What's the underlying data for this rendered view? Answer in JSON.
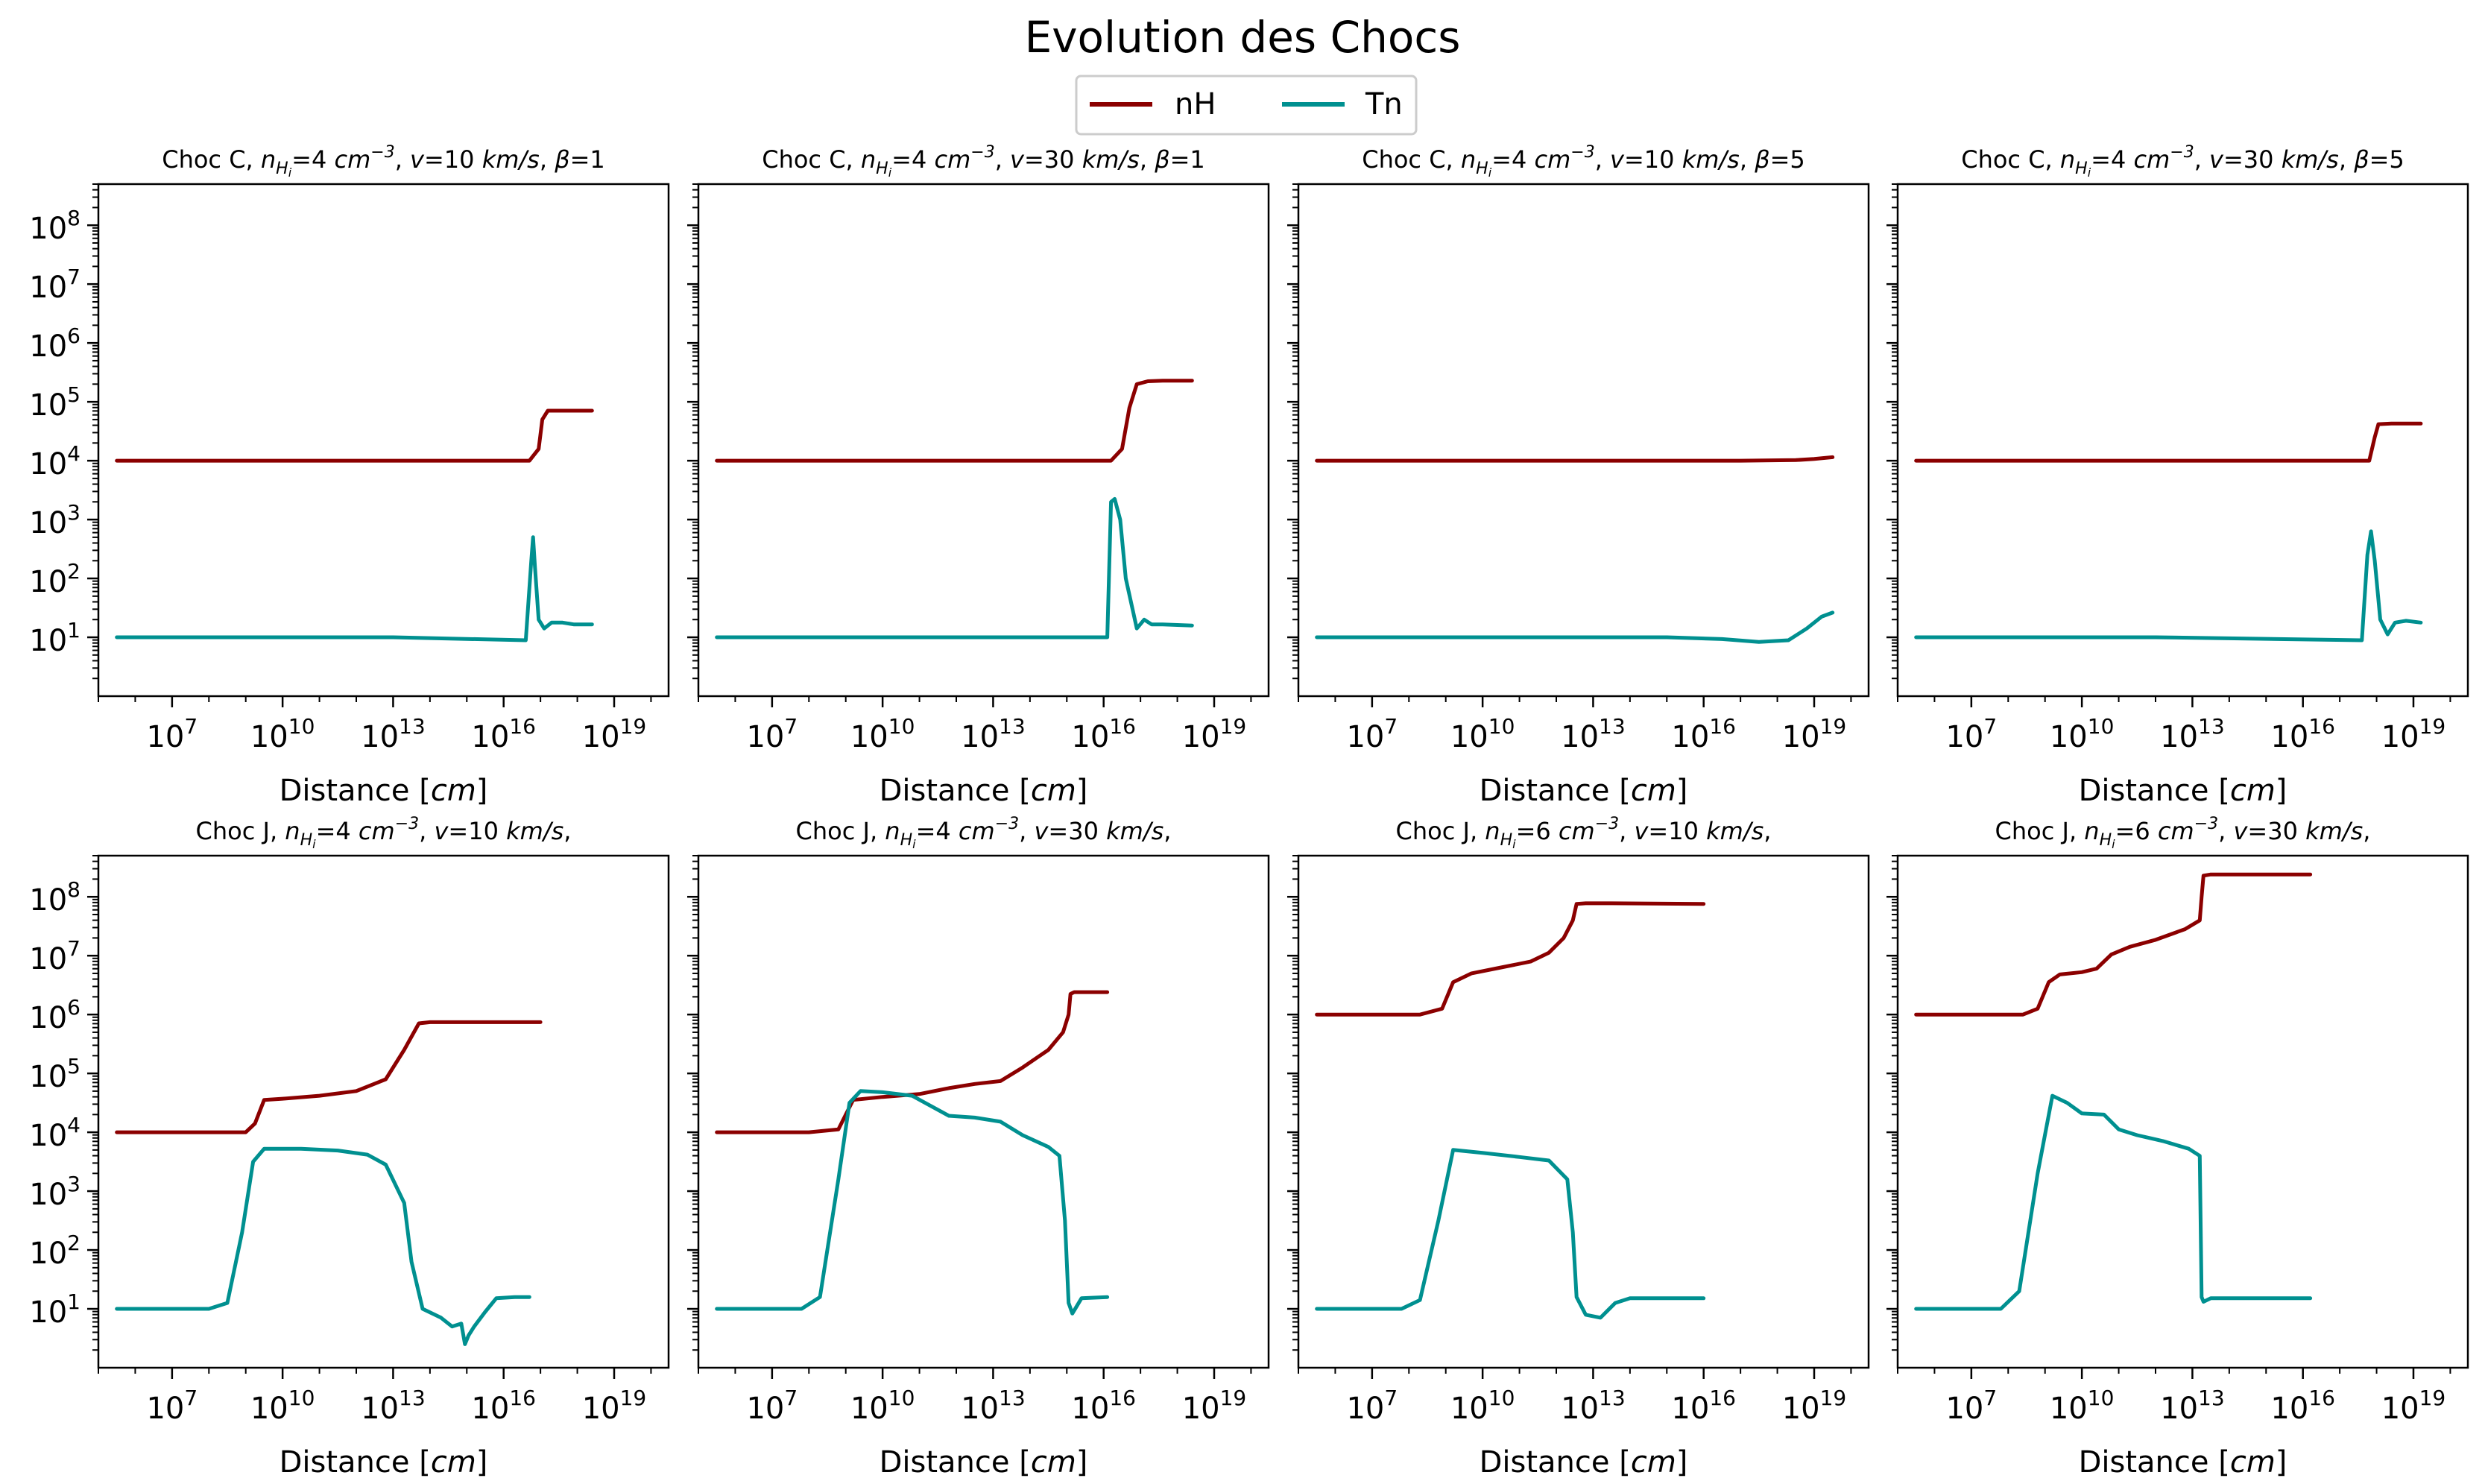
{
  "figure": {
    "title": "Evolution des Chocs",
    "legend": {
      "placement": "top-center",
      "entries": [
        {
          "name": "nH",
          "color": "#8b0000"
        },
        {
          "name": "Tn",
          "color": "#009090"
        }
      ]
    }
  },
  "chart_data": [
    {
      "type": "line",
      "title_parts": {
        "prefix": "Choc C, ",
        "n_value": "4",
        "v_value": "10",
        "beta_value": "1"
      },
      "xlabel": "Distance [cm]",
      "x_scale": "log",
      "y_scale": "log",
      "xlim": [
        100000,
        3e+20
      ],
      "ylim": [
        1,
        500000000
      ],
      "xticks": [
        "10^7",
        "10^10",
        "10^13",
        "10^16",
        "10^19"
      ],
      "yticks": [
        "10^1",
        "10^2",
        "10^3",
        "10^4",
        "10^5",
        "10^6",
        "10^7",
        "10^8"
      ],
      "series": [
        {
          "name": "nH",
          "log_x": [
            5.5,
            10,
            16.7,
            16.95,
            17.05,
            17.2,
            17.5,
            18.4
          ],
          "log_y": [
            4,
            4,
            4,
            4.2,
            4.7,
            4.85,
            4.85,
            4.85
          ]
        },
        {
          "name": "Tn",
          "log_x": [
            5.5,
            10,
            13,
            16.6,
            16.75,
            16.8,
            16.85,
            16.95,
            17.1,
            17.3,
            17.6,
            17.9,
            18.4
          ],
          "log_y": [
            1,
            1,
            1,
            0.95,
            2.3,
            2.7,
            2.2,
            1.3,
            1.15,
            1.25,
            1.25,
            1.22,
            1.22
          ]
        }
      ]
    },
    {
      "type": "line",
      "title_parts": {
        "prefix": "Choc C, ",
        "n_value": "4",
        "v_value": "30",
        "beta_value": "1"
      },
      "xlabel": "Distance [cm]",
      "x_scale": "log",
      "y_scale": "log",
      "xlim": [
        100000,
        3e+20
      ],
      "ylim": [
        1,
        500000000
      ],
      "xticks": [
        "10^7",
        "10^10",
        "10^13",
        "10^16",
        "10^19"
      ],
      "yticks": [
        "10^1",
        "10^2",
        "10^3",
        "10^4",
        "10^5",
        "10^6",
        "10^7",
        "10^8"
      ],
      "series": [
        {
          "name": "nH",
          "log_x": [
            5.5,
            10,
            16.2,
            16.5,
            16.7,
            16.9,
            17.2,
            17.6,
            18.4
          ],
          "log_y": [
            4,
            4,
            4,
            4.2,
            4.9,
            5.3,
            5.35,
            5.36,
            5.36
          ]
        },
        {
          "name": "Tn",
          "log_x": [
            5.5,
            10,
            16.1,
            16.2,
            16.3,
            16.45,
            16.6,
            16.9,
            17.1,
            17.3,
            17.6,
            18.4
          ],
          "log_y": [
            1,
            1,
            1,
            3.3,
            3.35,
            3,
            2,
            1.15,
            1.3,
            1.22,
            1.22,
            1.2
          ]
        }
      ]
    },
    {
      "type": "line",
      "title_parts": {
        "prefix": "Choc C, ",
        "n_value": "4",
        "v_value": "10",
        "beta_value": "5"
      },
      "xlabel": "Distance [cm]",
      "x_scale": "log",
      "y_scale": "log",
      "xlim": [
        100000,
        3e+20
      ],
      "ylim": [
        1,
        500000000
      ],
      "xticks": [
        "10^7",
        "10^10",
        "10^13",
        "10^16",
        "10^19"
      ],
      "yticks": [
        "10^1",
        "10^2",
        "10^3",
        "10^4",
        "10^5",
        "10^6",
        "10^7",
        "10^8"
      ],
      "series": [
        {
          "name": "nH",
          "log_x": [
            5.5,
            12,
            17,
            18.5,
            19,
            19.5
          ],
          "log_y": [
            4,
            4,
            4,
            4.01,
            4.03,
            4.06
          ]
        },
        {
          "name": "Tn",
          "log_x": [
            5.5,
            12,
            15,
            16.5,
            17.5,
            18.3,
            18.8,
            19.2,
            19.5
          ],
          "log_y": [
            1,
            1,
            1,
            0.97,
            0.92,
            0.95,
            1.15,
            1.35,
            1.42
          ]
        }
      ]
    },
    {
      "type": "line",
      "title_parts": {
        "prefix": "Choc C, ",
        "n_value": "4",
        "v_value": "30",
        "beta_value": "5"
      },
      "xlabel": "Distance [cm]",
      "x_scale": "log",
      "y_scale": "log",
      "xlim": [
        100000,
        3e+20
      ],
      "ylim": [
        1,
        500000000
      ],
      "xticks": [
        "10^7",
        "10^10",
        "10^13",
        "10^16",
        "10^19"
      ],
      "yticks": [
        "10^1",
        "10^2",
        "10^3",
        "10^4",
        "10^5",
        "10^6",
        "10^7",
        "10^8"
      ],
      "series": [
        {
          "name": "nH",
          "log_x": [
            5.5,
            12,
            17.8,
            17.95,
            18.05,
            18.4,
            18.8,
            19.2
          ],
          "log_y": [
            4,
            4,
            4,
            4.4,
            4.62,
            4.63,
            4.63,
            4.63
          ]
        },
        {
          "name": "Tn",
          "log_x": [
            5.5,
            12,
            17.6,
            17.75,
            17.85,
            17.95,
            18.1,
            18.3,
            18.5,
            18.8,
            19.2
          ],
          "log_y": [
            1,
            1,
            0.95,
            2.4,
            2.8,
            2.3,
            1.3,
            1.05,
            1.25,
            1.28,
            1.25
          ]
        }
      ]
    },
    {
      "type": "line",
      "title_parts": {
        "prefix": "Choc J, ",
        "n_value": "4",
        "v_value": "10"
      },
      "xlabel": "Distance [cm]",
      "x_scale": "log",
      "y_scale": "log",
      "xlim": [
        100000,
        3e+20
      ],
      "ylim": [
        1,
        500000000
      ],
      "xticks": [
        "10^7",
        "10^10",
        "10^13",
        "10^16",
        "10^19"
      ],
      "yticks": [
        "10^1",
        "10^2",
        "10^3",
        "10^4",
        "10^5",
        "10^6",
        "10^7",
        "10^8"
      ],
      "series": [
        {
          "name": "nH",
          "log_x": [
            5.5,
            8,
            9,
            9.25,
            9.5,
            10,
            11,
            12,
            12.8,
            13.3,
            13.7,
            14,
            15,
            17
          ],
          "log_y": [
            4,
            4,
            4,
            4.15,
            4.55,
            4.57,
            4.62,
            4.7,
            4.9,
            5.4,
            5.85,
            5.87,
            5.87,
            5.87
          ]
        },
        {
          "name": "Tn",
          "log_x": [
            5.5,
            8,
            8.5,
            8.9,
            9.2,
            9.5,
            10.5,
            11.5,
            12.3,
            12.8,
            13.3,
            13.5,
            13.8,
            14.3,
            14.6,
            14.85,
            14.95,
            15.05,
            15.2,
            15.5,
            15.8,
            16.3,
            16.7
          ],
          "log_y": [
            1,
            1,
            1.1,
            2.3,
            3.5,
            3.72,
            3.72,
            3.69,
            3.62,
            3.45,
            2.8,
            1.8,
            1,
            0.85,
            0.7,
            0.75,
            0.4,
            0.55,
            0.7,
            0.95,
            1.18,
            1.2,
            1.2
          ]
        }
      ]
    },
    {
      "type": "line",
      "title_parts": {
        "prefix": "Choc J, ",
        "n_value": "4",
        "v_value": "30"
      },
      "xlabel": "Distance [cm]",
      "x_scale": "log",
      "y_scale": "log",
      "xlim": [
        100000,
        3e+20
      ],
      "ylim": [
        1,
        500000000
      ],
      "xticks": [
        "10^7",
        "10^10",
        "10^13",
        "10^16",
        "10^19"
      ],
      "yticks": [
        "10^1",
        "10^2",
        "10^3",
        "10^4",
        "10^5",
        "10^6",
        "10^7",
        "10^8"
      ],
      "series": [
        {
          "name": "nH",
          "log_x": [
            5.5,
            8,
            8.8,
            9.2,
            10,
            11,
            11.8,
            12.5,
            13.2,
            13.8,
            14.5,
            14.9,
            15.05,
            15.1,
            15.2,
            16.1
          ],
          "log_y": [
            4,
            4,
            4.05,
            4.55,
            4.6,
            4.65,
            4.75,
            4.82,
            4.87,
            5.1,
            5.4,
            5.7,
            6,
            6.35,
            6.38,
            6.38
          ]
        },
        {
          "name": "Tn",
          "log_x": [
            5.5,
            7.8,
            8.3,
            8.8,
            9.1,
            9.4,
            10,
            10.8,
            11.3,
            11.8,
            12.5,
            13.2,
            13.8,
            14.5,
            14.8,
            14.95,
            15.05,
            15.15,
            15.4,
            16.1
          ],
          "log_y": [
            1,
            1,
            1.2,
            3.2,
            4.5,
            4.7,
            4.68,
            4.62,
            4.45,
            4.28,
            4.25,
            4.18,
            3.95,
            3.75,
            3.6,
            2.5,
            1.1,
            0.92,
            1.18,
            1.2
          ]
        }
      ]
    },
    {
      "type": "line",
      "title_parts": {
        "prefix": "Choc J, ",
        "n_value": "6",
        "v_value": "10"
      },
      "xlabel": "Distance [cm]",
      "x_scale": "log",
      "y_scale": "log",
      "xlim": [
        100000,
        3e+20
      ],
      "ylim": [
        1,
        500000000
      ],
      "xticks": [
        "10^7",
        "10^10",
        "10^13",
        "10^16",
        "10^19"
      ],
      "yticks": [
        "10^1",
        "10^2",
        "10^3",
        "10^4",
        "10^5",
        "10^6",
        "10^7",
        "10^8"
      ],
      "series": [
        {
          "name": "nH",
          "log_x": [
            5.5,
            8.3,
            8.9,
            9.2,
            9.7,
            10.5,
            11.3,
            11.8,
            12.2,
            12.45,
            12.55,
            12.8,
            13.5,
            16
          ],
          "log_y": [
            6,
            6,
            6.1,
            6.55,
            6.7,
            6.8,
            6.9,
            7.05,
            7.3,
            7.6,
            7.88,
            7.89,
            7.89,
            7.88
          ]
        },
        {
          "name": "Tn",
          "log_x": [
            5.5,
            7.8,
            8.3,
            8.8,
            9.2,
            10,
            11,
            11.8,
            12.3,
            12.45,
            12.55,
            12.8,
            13.2,
            13.6,
            14,
            16
          ],
          "log_y": [
            1,
            1,
            1.15,
            2.5,
            3.7,
            3.65,
            3.58,
            3.52,
            3.2,
            2.3,
            1.2,
            0.9,
            0.85,
            1.1,
            1.18,
            1.18
          ]
        }
      ]
    },
    {
      "type": "line",
      "title_parts": {
        "prefix": "Choc J, ",
        "n_value": "6",
        "v_value": "30"
      },
      "xlabel": "Distance [cm]",
      "x_scale": "log",
      "y_scale": "log",
      "xlim": [
        100000,
        3e+20
      ],
      "ylim": [
        1,
        500000000
      ],
      "xticks": [
        "10^7",
        "10^10",
        "10^13",
        "10^16",
        "10^19"
      ],
      "yticks": [
        "10^1",
        "10^2",
        "10^3",
        "10^4",
        "10^5",
        "10^6",
        "10^7",
        "10^8"
      ],
      "series": [
        {
          "name": "nH",
          "log_x": [
            5.5,
            8.4,
            8.8,
            9.1,
            9.4,
            10,
            10.4,
            10.8,
            11.3,
            12,
            12.8,
            13.2,
            13.25,
            13.3,
            13.5,
            16.2
          ],
          "log_y": [
            6,
            6,
            6.1,
            6.55,
            6.68,
            6.72,
            6.78,
            7.02,
            7.15,
            7.27,
            7.45,
            7.6,
            8,
            8.36,
            8.38,
            8.38
          ]
        },
        {
          "name": "Tn",
          "log_x": [
            5.5,
            7.8,
            8.3,
            8.8,
            9.2,
            9.6,
            10,
            10.6,
            11,
            11.5,
            12.2,
            12.9,
            13.2,
            13.25,
            13.3,
            13.5,
            16.2
          ],
          "log_y": [
            1,
            1,
            1.3,
            3.3,
            4.62,
            4.5,
            4.32,
            4.3,
            4.05,
            3.95,
            3.85,
            3.72,
            3.6,
            1.2,
            1.12,
            1.18,
            1.18
          ]
        }
      ]
    }
  ]
}
